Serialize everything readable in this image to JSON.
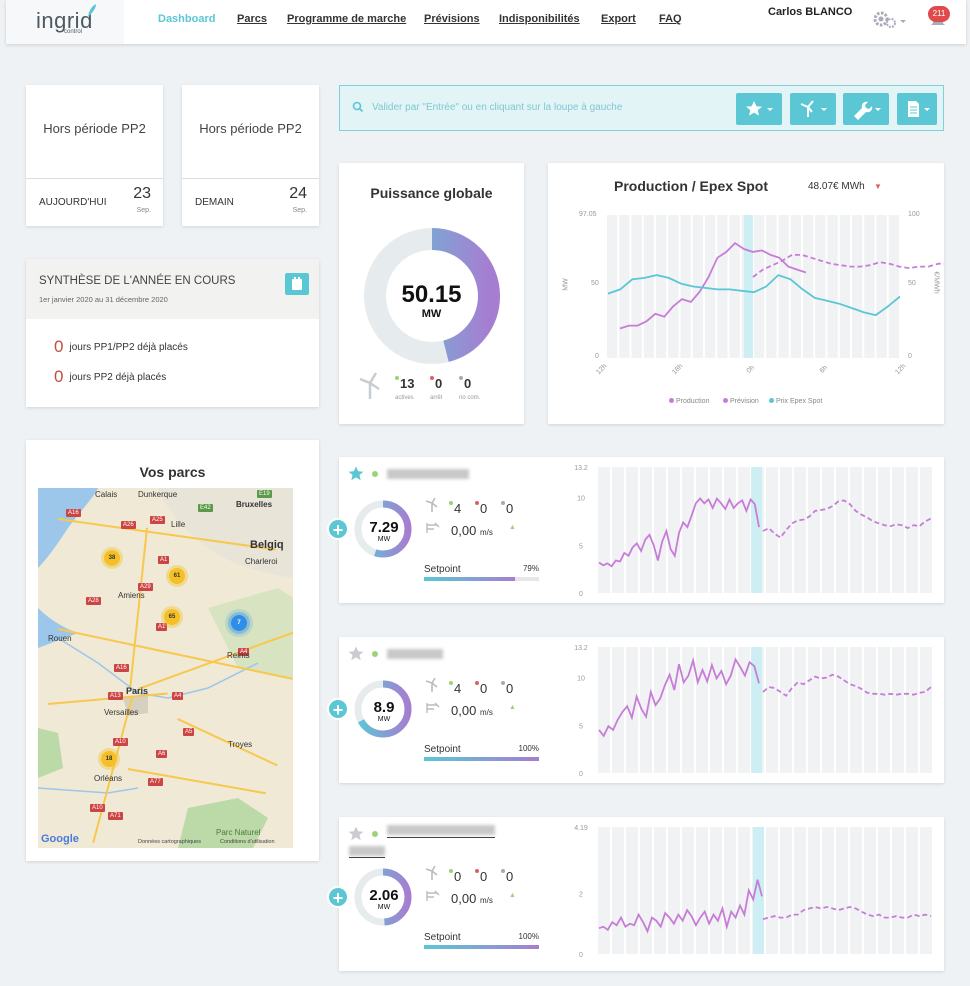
{
  "header": {
    "logo_text": "ingrid",
    "logo_sub": "control",
    "nav": [
      {
        "label": "Dashboard",
        "active": true
      },
      {
        "label": "Parcs"
      },
      {
        "label": "Programme de marche"
      },
      {
        "label": "Prévisions"
      },
      {
        "label": "Indisponibilités"
      },
      {
        "label": "Export"
      },
      {
        "label": "FAQ"
      }
    ],
    "user": "Carlos BLANCO",
    "notifications": "211"
  },
  "period_cards": [
    {
      "title": "Hors période PP2",
      "day_label": "AUJOURD'HUI",
      "day": "23",
      "month": "Sep."
    },
    {
      "title": "Hors période PP2",
      "day_label": "DEMAIN",
      "day": "24",
      "month": "Sep."
    }
  ],
  "synthese": {
    "title": "SYNTHÈSE DE L'ANNÉE EN COURS",
    "subtitle": "1er janvier 2020 au 31 décembre 2020",
    "rows": [
      {
        "count": "0",
        "label": "jours PP1/PP2 déjà placés"
      },
      {
        "count": "0",
        "label": "jours PP2 déjà placés"
      }
    ]
  },
  "search": {
    "placeholder": "Valider par \"Entrée\" ou en cliquant sur la loupe à gauche"
  },
  "puissance": {
    "title": "Puissance globale",
    "value": "50.15",
    "unit": "MW",
    "fill_fraction": 0.46,
    "stats": [
      {
        "count": "13",
        "label": "actives",
        "color": "#9bd27a"
      },
      {
        "count": "0",
        "label": "arrêt",
        "color": "#e06060"
      },
      {
        "count": "0",
        "label": "no com.",
        "color": "#aaaaaa"
      }
    ]
  },
  "production": {
    "title": "Production / Epex Spot",
    "price": "48.07€ MWh",
    "colors": {
      "production": "#c77dd8",
      "prix": "#5bc7d5"
    }
  },
  "chart_data": {
    "type": "line",
    "x_ticks": [
      "12h",
      "18h",
      "0h",
      "6h",
      "12h"
    ],
    "left_axis": {
      "label": "MW",
      "ticks": [
        "0",
        "50",
        "97.05"
      ],
      "ylim": [
        0,
        97.05
      ]
    },
    "right_axis": {
      "label": "€/MWh",
      "ticks": [
        "0",
        "50",
        "100"
      ],
      "ylim": [
        0,
        100
      ]
    },
    "series": [
      {
        "name": "Production",
        "values": [
          20,
          22,
          22,
          25,
          30,
          28,
          35,
          40,
          38,
          45,
          55,
          68,
          72,
          78,
          74,
          72,
          73,
          70,
          68,
          62,
          60,
          58
        ]
      },
      {
        "name": "Prévision",
        "values": [
          55,
          60,
          63,
          66,
          70,
          70,
          68,
          66,
          64,
          63,
          62,
          62,
          63,
          65,
          64,
          62,
          61,
          62,
          62,
          64,
          64
        ]
      },
      {
        "name": "Prix Epex Spot",
        "values": [
          45,
          48,
          55,
          56,
          58,
          56,
          52,
          50,
          49,
          48,
          48,
          47,
          46,
          50,
          58,
          55,
          48,
          42,
          40,
          38,
          35,
          32,
          30,
          36,
          43
        ]
      }
    ],
    "legend": [
      "Production",
      "Prévision",
      "Prix Epex Spot"
    ]
  },
  "vos_parcs": {
    "title": "Vos parcs",
    "map_labels": [
      "Calais",
      "Dunkerque",
      "Lille",
      "Bruxelles",
      "Belgiq",
      "Charleroi",
      "Amiens",
      "Rouen",
      "Reims",
      "Paris",
      "Versailles",
      "Troyes",
      "Orléans",
      "Parc Naturel",
      "Google",
      "Données cartographiques",
      "Conditions d'utilisation"
    ],
    "clusters": [
      "38",
      "61",
      "65",
      "7",
      "18"
    ]
  },
  "parks": [
    {
      "value": "7.29",
      "unit": "MW",
      "star": true,
      "counts": [
        "4",
        "0",
        "0"
      ],
      "wind": "0,00",
      "wind_unit": "m/s",
      "setpoint_label": "Setpoint",
      "setpoint_pct": "79%",
      "setpoint_fraction": 0.79,
      "ymax": "13.2",
      "yticks": [
        "0",
        "5",
        "10",
        "13.2"
      ],
      "ring_fraction": 0.55
    },
    {
      "value": "8.9",
      "unit": "MW",
      "star": false,
      "counts": [
        "4",
        "0",
        "0"
      ],
      "wind": "0,00",
      "wind_unit": "m/s",
      "setpoint_label": "Setpoint",
      "setpoint_pct": "100%",
      "setpoint_fraction": 1.0,
      "ymax": "13.2",
      "yticks": [
        "0",
        "5",
        "10",
        "13.2"
      ],
      "ring_fraction": 0.67
    },
    {
      "value": "2.06",
      "unit": "MW",
      "star": false,
      "counts": [
        "0",
        "0",
        "0"
      ],
      "wind": "0,00",
      "wind_unit": "m/s",
      "setpoint_label": "Setpoint",
      "setpoint_pct": "100%",
      "setpoint_fraction": 1.0,
      "ymax": "4.19",
      "yticks": [
        "0",
        "2",
        "4.19"
      ],
      "ring_fraction": 0.49
    }
  ],
  "mw_label": "MW"
}
